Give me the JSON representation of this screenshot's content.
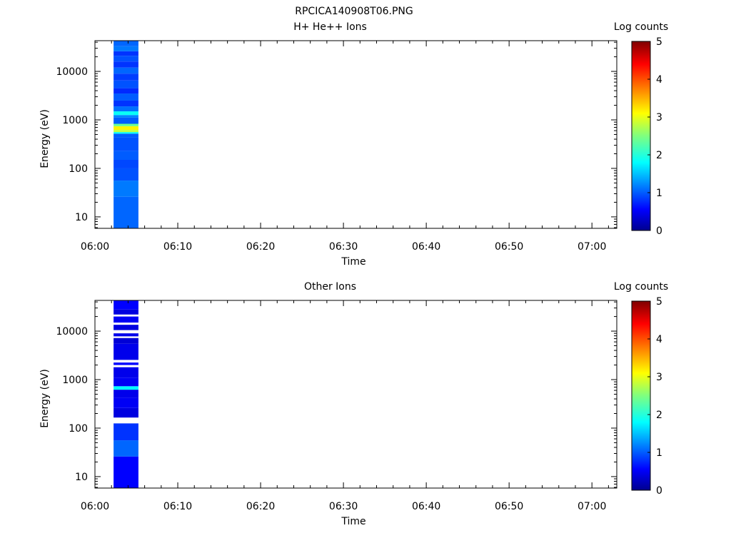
{
  "figure_title": "RPCICA140908T06.PNG",
  "chart_data": [
    {
      "type": "heatmap",
      "title": "H+ He++ Ions",
      "xlabel": "Time",
      "ylabel": "Energy (eV)",
      "x_ticks": [
        "06:00",
        "06:10",
        "06:20",
        "06:30",
        "06:40",
        "06:50",
        "07:00"
      ],
      "xlim": [
        "06:00",
        "07:03"
      ],
      "y_scale": "log",
      "y_ticks": [
        10,
        100,
        1000,
        10000
      ],
      "ylim": [
        5.8,
        43000
      ],
      "colorbar": {
        "label": "Log counts",
        "ticks": [
          0,
          1,
          2,
          3,
          4,
          5
        ],
        "range": [
          0,
          5
        ],
        "colormap": "rainbow"
      },
      "data_time_range": [
        "06:02:15",
        "06:05:15"
      ],
      "energy_bins": [
        {
          "e_lo": 5.8,
          "e_hi": 26,
          "log_counts": 1.05
        },
        {
          "e_lo": 26,
          "e_hi": 56,
          "log_counts": 1.15
        },
        {
          "e_lo": 56,
          "e_hi": 100,
          "log_counts": 0.95
        },
        {
          "e_lo": 100,
          "e_hi": 150,
          "log_counts": 0.9
        },
        {
          "e_lo": 150,
          "e_hi": 230,
          "log_counts": 1.0
        },
        {
          "e_lo": 230,
          "e_hi": 430,
          "log_counts": 0.95
        },
        {
          "e_lo": 430,
          "e_hi": 520,
          "log_counts": 1.0
        },
        {
          "e_lo": 520,
          "e_hi": 560,
          "log_counts": 1.8
        },
        {
          "e_lo": 560,
          "e_hi": 620,
          "log_counts": 2.8
        },
        {
          "e_lo": 620,
          "e_hi": 740,
          "log_counts": 3.15
        },
        {
          "e_lo": 740,
          "e_hi": 830,
          "log_counts": 2.4
        },
        {
          "e_lo": 830,
          "e_hi": 1120,
          "log_counts": 1.0
        },
        {
          "e_lo": 1120,
          "e_hi": 1260,
          "log_counts": 1.2
        },
        {
          "e_lo": 1260,
          "e_hi": 1500,
          "log_counts": 1.85
        },
        {
          "e_lo": 1500,
          "e_hi": 1900,
          "log_counts": 1.1
        },
        {
          "e_lo": 1900,
          "e_hi": 2500,
          "log_counts": 0.8
        },
        {
          "e_lo": 2500,
          "e_hi": 3500,
          "log_counts": 1.0
        },
        {
          "e_lo": 3500,
          "e_hi": 4500,
          "log_counts": 0.75
        },
        {
          "e_lo": 4500,
          "e_hi": 6500,
          "log_counts": 0.95
        },
        {
          "e_lo": 6500,
          "e_hi": 9000,
          "log_counts": 0.85
        },
        {
          "e_lo": 9000,
          "e_hi": 12000,
          "log_counts": 1.05
        },
        {
          "e_lo": 12000,
          "e_hi": 16000,
          "log_counts": 0.8
        },
        {
          "e_lo": 16000,
          "e_hi": 21000,
          "log_counts": 0.95
        },
        {
          "e_lo": 21000,
          "e_hi": 26000,
          "log_counts": 0.8
        },
        {
          "e_lo": 26000,
          "e_hi": 33000,
          "log_counts": 1.15
        },
        {
          "e_lo": 33000,
          "e_hi": 43000,
          "log_counts": 1.05
        }
      ]
    },
    {
      "type": "heatmap",
      "title": "Other Ions",
      "xlabel": "Time",
      "ylabel": "Energy (eV)",
      "x_ticks": [
        "06:00",
        "06:10",
        "06:20",
        "06:30",
        "06:40",
        "06:50",
        "07:00"
      ],
      "xlim": [
        "06:00",
        "07:03"
      ],
      "y_scale": "log",
      "y_ticks": [
        10,
        100,
        1000,
        10000
      ],
      "ylim": [
        5.8,
        43000
      ],
      "colorbar": {
        "label": "Log counts",
        "ticks": [
          0,
          1,
          2,
          3,
          4,
          5
        ],
        "range": [
          0,
          5
        ],
        "colormap": "rainbow"
      },
      "data_time_range": [
        "06:02:15",
        "06:05:15"
      ],
      "energy_bins": [
        {
          "e_lo": 5.8,
          "e_hi": 26,
          "log_counts": 0.55
        },
        {
          "e_lo": 26,
          "e_hi": 56,
          "log_counts": 1.05
        },
        {
          "e_lo": 56,
          "e_hi": 125,
          "log_counts": 0.8
        },
        {
          "e_lo": 165,
          "e_hi": 260,
          "log_counts": 0.4
        },
        {
          "e_lo": 260,
          "e_hi": 420,
          "log_counts": 0.5
        },
        {
          "e_lo": 420,
          "e_hi": 620,
          "log_counts": 0.45
        },
        {
          "e_lo": 620,
          "e_hi": 730,
          "log_counts": 1.8
        },
        {
          "e_lo": 730,
          "e_hi": 1100,
          "log_counts": 0.5
        },
        {
          "e_lo": 1100,
          "e_hi": 1800,
          "log_counts": 0.45
        },
        {
          "e_lo": 2000,
          "e_hi": 2250,
          "log_counts": 0.55
        },
        {
          "e_lo": 2550,
          "e_hi": 5500,
          "log_counts": 0.45
        },
        {
          "e_lo": 5500,
          "e_hi": 7200,
          "log_counts": 0.35
        },
        {
          "e_lo": 7800,
          "e_hi": 9000,
          "log_counts": 0.45
        },
        {
          "e_lo": 10500,
          "e_hi": 13500,
          "log_counts": 0.4
        },
        {
          "e_lo": 15000,
          "e_hi": 20000,
          "log_counts": 0.5
        },
        {
          "e_lo": 22000,
          "e_hi": 28000,
          "log_counts": 0.4
        },
        {
          "e_lo": 28000,
          "e_hi": 43000,
          "log_counts": 0.55
        }
      ]
    }
  ]
}
